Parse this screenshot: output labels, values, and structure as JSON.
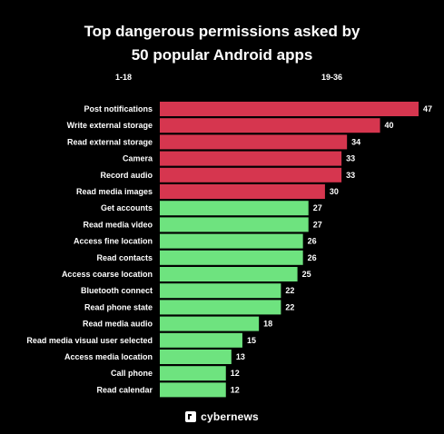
{
  "title_line1": "Top dangerous permissions asked by",
  "title_line2": "50 popular Android apps",
  "legend": {
    "red_label": "1-18",
    "green_label": "19-36"
  },
  "brand": "cybernews",
  "colors": {
    "red": "#d6364f",
    "green": "#6ee37f",
    "background": "#000000",
    "text": "#ffffff"
  },
  "chart_data": {
    "type": "bar",
    "orientation": "horizontal",
    "categories": [
      "Post notifications",
      "Write external storage",
      "Read external storage",
      "Camera",
      "Record audio",
      "Read media images",
      "Get accounts",
      "Read media video",
      "Access fine location",
      "Read contacts",
      "Access coarse location",
      "Bluetooth connect",
      "Read phone state",
      "Read media audio",
      "Read media visual user selected",
      "Access media location",
      "Call phone",
      "Read calendar"
    ],
    "values": [
      47,
      40,
      34,
      33,
      33,
      30,
      27,
      27,
      26,
      26,
      25,
      22,
      22,
      18,
      15,
      13,
      12,
      12
    ],
    "groups": [
      "red",
      "red",
      "red",
      "red",
      "red",
      "red",
      "green",
      "green",
      "green",
      "green",
      "green",
      "green",
      "green",
      "green",
      "green",
      "green",
      "green",
      "green"
    ],
    "title": "Top dangerous permissions asked by 50 popular Android apps",
    "xlabel": "",
    "ylabel": "",
    "xlim": [
      0,
      47
    ],
    "grid": false,
    "legend_placement": "top"
  }
}
